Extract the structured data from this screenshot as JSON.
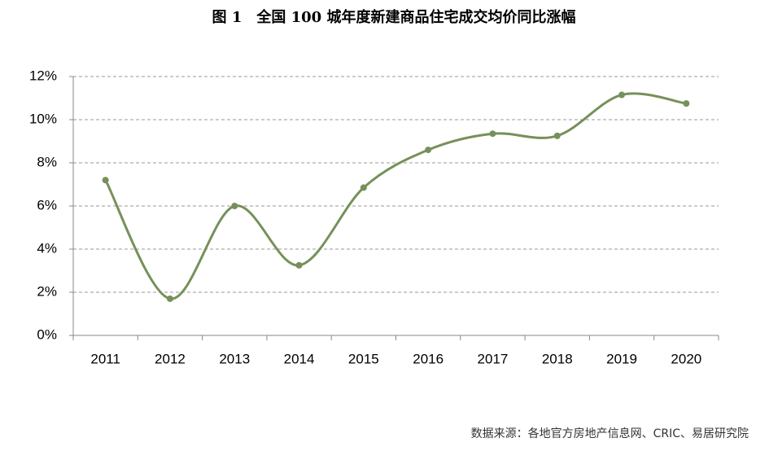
{
  "chart_data": {
    "type": "line",
    "title": "图 1　全国 100 城年度新建商品住宅成交均价同比涨幅",
    "source": "数据来源：各地官方房地产信息网、CRIC、易居研究院",
    "categories": [
      "2011",
      "2012",
      "2013",
      "2014",
      "2015",
      "2016",
      "2017",
      "2018",
      "2019",
      "2020"
    ],
    "series": [
      {
        "name": "同比涨幅",
        "color": "#76905a",
        "values": [
          7.2,
          1.7,
          6.0,
          3.25,
          6.85,
          8.6,
          9.35,
          9.25,
          11.15,
          10.75
        ]
      }
    ],
    "ylim": [
      0,
      12
    ],
    "yticks": [
      {
        "value": 0,
        "label": "0%"
      },
      {
        "value": 2,
        "label": "2%"
      },
      {
        "value": 4,
        "label": "4%"
      },
      {
        "value": 6,
        "label": "6%"
      },
      {
        "value": 8,
        "label": "8%"
      },
      {
        "value": 10,
        "label": "10%"
      },
      {
        "value": 12,
        "label": "12%"
      }
    ],
    "grid": true,
    "smooth": true
  }
}
